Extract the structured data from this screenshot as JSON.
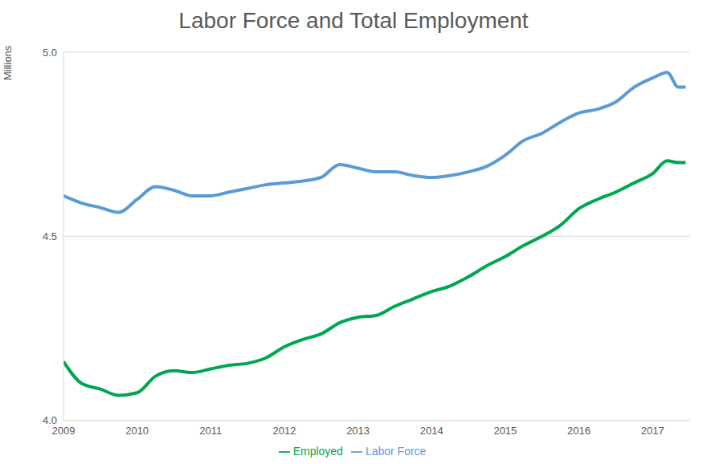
{
  "chart_data": {
    "type": "line",
    "title": "Labor Force and Total Employment",
    "y_label": "Millions",
    "x": [
      2009,
      2009.25,
      2009.5,
      2009.75,
      2010,
      2010.25,
      2010.5,
      2010.75,
      2011,
      2011.25,
      2011.5,
      2011.75,
      2012,
      2012.25,
      2012.5,
      2012.75,
      2013,
      2013.25,
      2013.5,
      2013.75,
      2014,
      2014.25,
      2014.5,
      2014.75,
      2015,
      2015.25,
      2015.5,
      2015.75,
      2016,
      2016.25,
      2016.5,
      2016.75,
      2017,
      2017.2,
      2017.35,
      2017.45
    ],
    "series": [
      {
        "name": "Labor Force",
        "color": "#5b9bd5",
        "values": [
          4.61,
          4.59,
          4.578,
          4.565,
          4.6,
          4.635,
          4.625,
          4.61,
          4.61,
          4.62,
          4.63,
          4.64,
          4.645,
          4.65,
          4.66,
          4.695,
          4.685,
          4.675,
          4.675,
          4.665,
          4.66,
          4.665,
          4.675,
          4.69,
          4.72,
          4.76,
          4.78,
          4.81,
          4.835,
          4.845,
          4.865,
          4.905,
          4.93,
          4.945,
          4.905,
          4.905
        ]
      },
      {
        "name": "Employed",
        "color": "#00a650",
        "values": [
          4.16,
          4.1,
          4.085,
          4.068,
          4.075,
          4.12,
          4.135,
          4.13,
          4.14,
          4.15,
          4.155,
          4.17,
          4.2,
          4.22,
          4.235,
          4.265,
          4.28,
          4.285,
          4.31,
          4.33,
          4.35,
          4.365,
          4.39,
          4.42,
          4.445,
          4.475,
          4.5,
          4.53,
          4.575,
          4.6,
          4.62,
          4.645,
          4.67,
          4.705,
          4.7,
          4.7
        ]
      }
    ],
    "xlim": [
      2009,
      2017.5
    ],
    "xticks": [
      2009,
      2010,
      2011,
      2012,
      2013,
      2014,
      2015,
      2016,
      2017
    ],
    "ylim": [
      4,
      5
    ],
    "yticks": [
      {
        "value": 4,
        "label": "4.0"
      },
      {
        "value": 4.5,
        "label": "4.5"
      },
      {
        "value": 5,
        "label": "5.0"
      }
    ],
    "grid": true,
    "legend": "bottom"
  }
}
